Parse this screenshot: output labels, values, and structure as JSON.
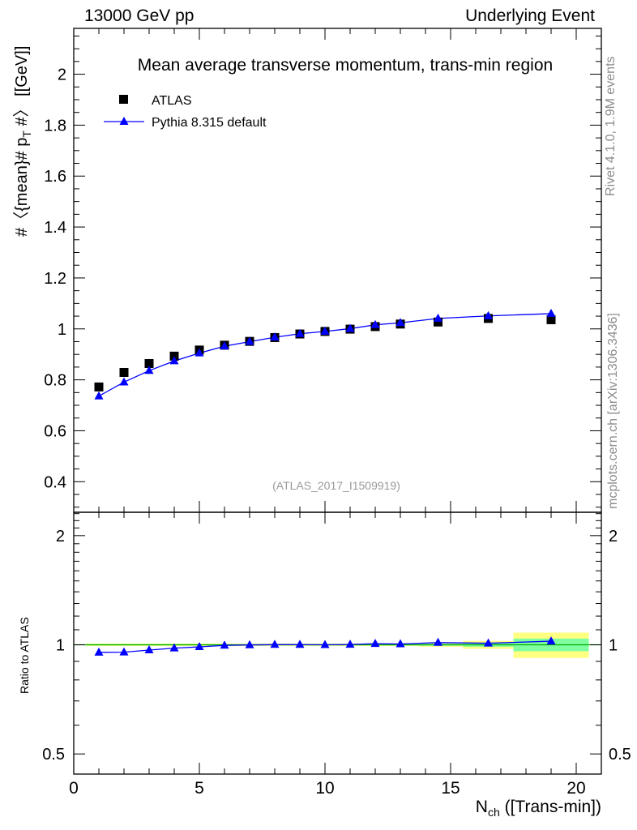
{
  "header": {
    "left": "13000 GeV pp",
    "right": "Underlying Event"
  },
  "side_labels": {
    "rivet": "Rivet 4.1.0,  1.9M events",
    "mcplots": "mcplots.cern.ch [arXiv:1306.3436]"
  },
  "colors": {
    "atlas": "#000000",
    "pythia": "#0000ff",
    "band_inner": "#7fffa0",
    "band_outer": "#ffff80",
    "ref_line": "#00aa00",
    "watermark": "#999999"
  },
  "chart_data": [
    {
      "type": "scatter",
      "panel": "main",
      "title": "Mean average transverse momentum, trans-min region",
      "ylabel": "#〈{mean}# p_T #〉 [[GeV]]",
      "ylabel_main": "#〈{mean}# p",
      "ylabel_sub": "T",
      "ylabel_tail": " #〉 [[GeV]]",
      "watermark": "(ATLAS_2017_I1509919)",
      "xlim": [
        0,
        21
      ],
      "ylim": [
        0.28,
        2.18
      ],
      "yticks": [
        0.4,
        0.6,
        0.8,
        1,
        1.2,
        1.4,
        1.6,
        1.8,
        2
      ],
      "yticklabels": [
        "0.4",
        "0.6",
        "0.8",
        "1",
        "1.2",
        "1.4",
        "1.6",
        "1.8",
        "2"
      ],
      "legend": [
        "ATLAS",
        "Pythia 8.315 default"
      ],
      "legend_position": "top-left",
      "series": [
        {
          "name": "ATLAS",
          "marker": "square",
          "x": [
            1,
            2,
            3,
            4,
            5,
            6,
            7,
            8,
            9,
            10,
            11,
            12,
            13,
            14.5,
            16.5,
            19
          ],
          "values": [
            0.772,
            0.829,
            0.864,
            0.893,
            0.917,
            0.936,
            0.951,
            0.966,
            0.98,
            0.99,
            0.999,
            1.009,
            1.019,
            1.027,
            1.041,
            1.036
          ]
        },
        {
          "name": "Pythia 8.315 default",
          "marker": "triangle",
          "x": [
            1,
            2,
            3,
            4,
            5,
            6,
            7,
            8,
            9,
            10,
            11,
            12,
            13,
            14.5,
            16.5,
            19
          ],
          "values": [
            0.736,
            0.791,
            0.836,
            0.874,
            0.905,
            0.932,
            0.95,
            0.967,
            0.981,
            0.99,
            1.001,
            1.016,
            1.024,
            1.041,
            1.051,
            1.06
          ]
        }
      ]
    },
    {
      "type": "line",
      "panel": "ratio",
      "ylabel": "Ratio to ATLAS",
      "xlabel": "N_ch ([Trans-min])",
      "xlabel_main": "N",
      "xlabel_sub": "ch",
      "xlabel_tail": " ([Trans-min])",
      "xlim": [
        0,
        21
      ],
      "ylim": [
        0.44,
        2.32
      ],
      "ylog": true,
      "xticks": [
        0,
        5,
        10,
        15,
        20
      ],
      "xticklabels": [
        "0",
        "5",
        "10",
        "15",
        "20"
      ],
      "yticks": [
        0.5,
        1,
        2
      ],
      "yticklabels": [
        "0.5",
        "1",
        "2"
      ],
      "reference": 1,
      "uncertainty_bands": [
        {
          "x_from": 0.5,
          "x_to": 13.75,
          "inner": 0.004,
          "outer": 0.008
        },
        {
          "x_from": 13.75,
          "x_to": 15.5,
          "inner": 0.006,
          "outer": 0.012
        },
        {
          "x_from": 15.5,
          "x_to": 17.5,
          "inner": 0.012,
          "outer": 0.025
        },
        {
          "x_from": 17.5,
          "x_to": 20.5,
          "inner": 0.04,
          "outer": 0.08
        }
      ],
      "series": [
        {
          "name": "Pythia 8.315 default",
          "x": [
            1,
            2,
            3,
            4,
            5,
            6,
            7,
            8,
            9,
            10,
            11,
            12,
            13,
            14.5,
            16.5,
            19
          ],
          "values": [
            0.953,
            0.954,
            0.967,
            0.979,
            0.987,
            0.996,
            0.999,
            1.001,
            1.001,
            1.0,
            1.002,
            1.007,
            1.005,
            1.014,
            1.01,
            1.023
          ]
        }
      ]
    }
  ]
}
